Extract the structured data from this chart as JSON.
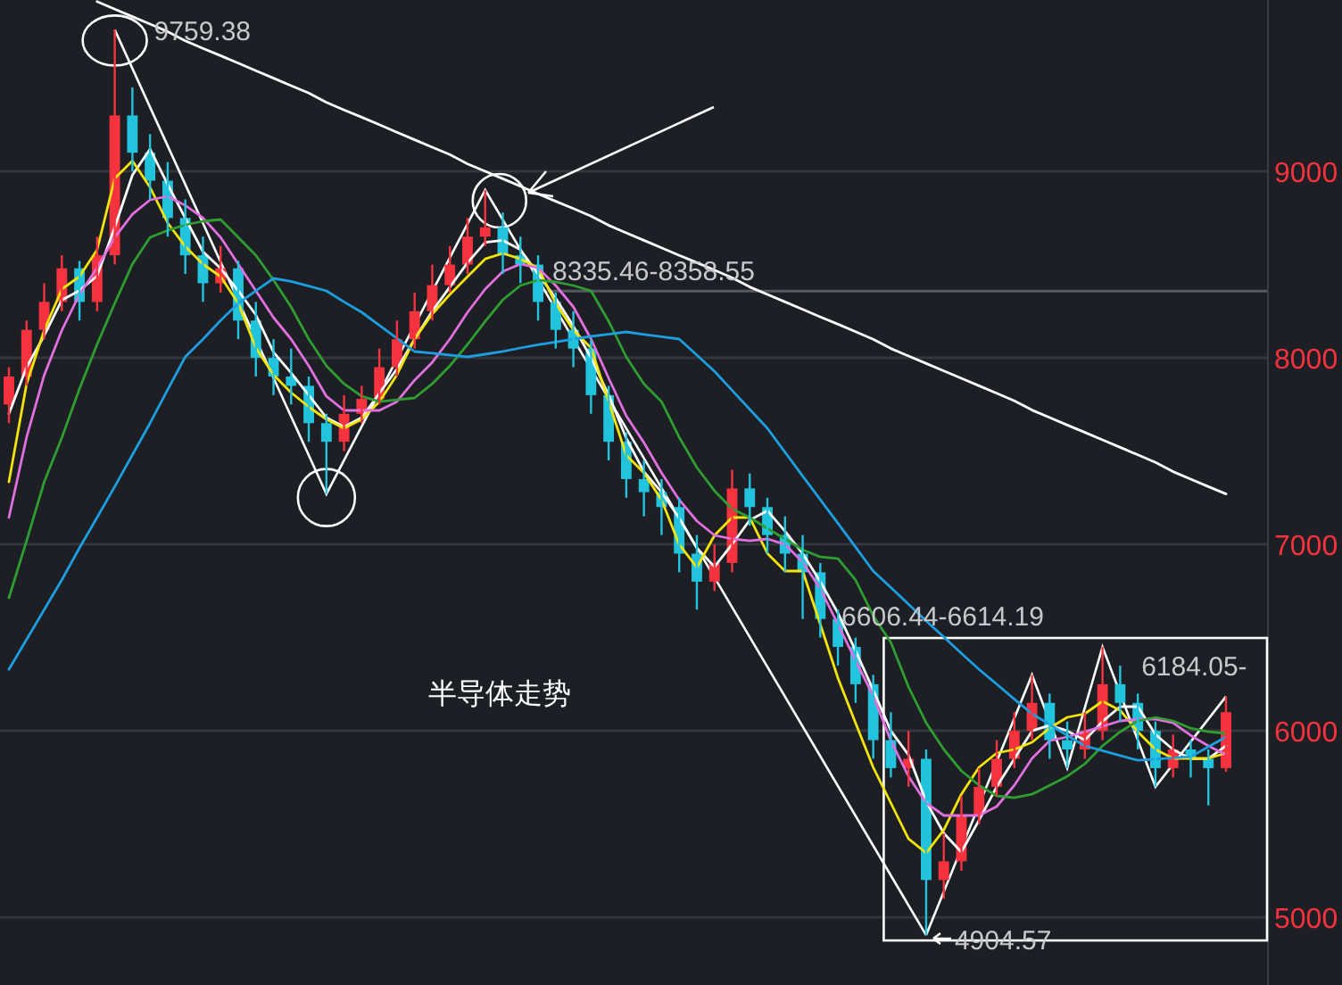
{
  "chart_data": {
    "type": "candlestick",
    "title": "半导体走势",
    "categories": [
      null,
      null,
      null,
      null,
      null,
      null,
      null,
      null,
      null,
      null,
      null,
      null,
      null,
      null,
      null,
      null,
      null,
      null,
      null,
      null,
      null,
      null,
      null,
      null,
      null,
      null,
      null,
      null,
      null,
      null,
      null,
      null,
      null,
      null,
      null,
      null,
      null,
      null,
      null,
      null,
      null,
      null,
      null,
      null,
      null,
      null,
      null,
      null,
      null,
      null,
      null,
      null,
      null,
      null,
      null,
      null,
      null,
      null,
      null,
      null,
      null,
      null,
      null,
      null,
      null,
      null,
      null,
      null,
      null,
      null
    ],
    "ohlc": [
      [
        7750,
        7950,
        7650,
        7900
      ],
      [
        7900,
        8200,
        7850,
        8150
      ],
      [
        8150,
        8400,
        8100,
        8300
      ],
      [
        8300,
        8550,
        8250,
        8480
      ],
      [
        8480,
        8520,
        8200,
        8300
      ],
      [
        8300,
        8650,
        8250,
        8550
      ],
      [
        8550,
        9759.38,
        8500,
        9300
      ],
      [
        9300,
        9450,
        9000,
        9100
      ],
      [
        9100,
        9200,
        8850,
        8950
      ],
      [
        8950,
        9050,
        8650,
        8750
      ],
      [
        8750,
        8850,
        8450,
        8550
      ],
      [
        8550,
        8650,
        8300,
        8400
      ],
      [
        8400,
        8600,
        8350,
        8480
      ],
      [
        8480,
        8520,
        8100,
        8200
      ],
      [
        8200,
        8300,
        7900,
        8000
      ],
      [
        8000,
        8100,
        7800,
        7900
      ],
      [
        7900,
        8050,
        7750,
        7850
      ],
      [
        7850,
        7900,
        7550,
        7650
      ],
      [
        7650,
        7700,
        7270,
        7550
      ],
      [
        7550,
        7800,
        7500,
        7700
      ],
      [
        7700,
        7850,
        7650,
        7780
      ],
      [
        7780,
        8050,
        7750,
        7950
      ],
      [
        7950,
        8200,
        7900,
        8100
      ],
      [
        8100,
        8350,
        8050,
        8250
      ],
      [
        8250,
        8500,
        8200,
        8390
      ],
      [
        8390,
        8600,
        8350,
        8500
      ],
      [
        8500,
        8750,
        8450,
        8650
      ],
      [
        8650,
        8900,
        8600,
        8700
      ],
      [
        8700,
        8780,
        8450,
        8550
      ],
      [
        8550,
        8650,
        8400,
        8500
      ],
      [
        8500,
        8550,
        8200,
        8300
      ],
      [
        8300,
        8350,
        8050,
        8150
      ],
      [
        8150,
        8250,
        7950,
        8050
      ],
      [
        8050,
        8100,
        7700,
        7800
      ],
      [
        7800,
        7850,
        7450,
        7550
      ],
      [
        7550,
        7600,
        7250,
        7350
      ],
      [
        7350,
        7450,
        7150,
        7280
      ],
      [
        7280,
        7350,
        7050,
        7200
      ],
      [
        7200,
        7250,
        6850,
        6950
      ],
      [
        6950,
        7050,
        6650,
        6800
      ],
      [
        6800,
        7000,
        6750,
        6900
      ],
      [
        6900,
        7400,
        6850,
        7300
      ],
      [
        7300,
        7380,
        7100,
        7200
      ],
      [
        7200,
        7250,
        6950,
        7050
      ],
      [
        7050,
        7150,
        6850,
        6950
      ],
      [
        6950,
        7050,
        6600,
        6850
      ],
      [
        6850,
        6900,
        6500,
        6600
      ],
      [
        6600,
        6650,
        6350,
        6450
      ],
      [
        6450,
        6500,
        6150,
        6250
      ],
      [
        6250,
        6300,
        5850,
        5950
      ],
      [
        5950,
        6100,
        5750,
        5800
      ],
      [
        5800,
        6000,
        5700,
        5850
      ],
      [
        5850,
        5900,
        4904.57,
        5200
      ],
      [
        5200,
        5450,
        5100,
        5300
      ],
      [
        5300,
        5650,
        5250,
        5550
      ],
      [
        5550,
        5800,
        5500,
        5700
      ],
      [
        5700,
        5950,
        5650,
        5850
      ],
      [
        5850,
        6100,
        5800,
        6000
      ],
      [
        6000,
        6300,
        5950,
        6150
      ],
      [
        6150,
        6200,
        5850,
        5950
      ],
      [
        5950,
        6050,
        5800,
        5900
      ],
      [
        5900,
        6100,
        5850,
        6000
      ],
      [
        6000,
        6450,
        5950,
        6250
      ],
      [
        6250,
        6350,
        6050,
        6150
      ],
      [
        6150,
        6200,
        5900,
        6000
      ],
      [
        6000,
        6050,
        5700,
        5800
      ],
      [
        5800,
        5980,
        5750,
        5900
      ],
      [
        5900,
        5950,
        5750,
        5850
      ],
      [
        5850,
        5900,
        5600,
        5800
      ],
      [
        5800,
        6184.05,
        5780,
        6100
      ]
    ],
    "colors": [
      "#f5333f",
      "#f5333f",
      "#f5333f",
      "#f5333f",
      "#22c3dd",
      "#f5333f",
      "#f5333f",
      "#22c3dd",
      "#22c3dd",
      "#22c3dd",
      "#22c3dd",
      "#22c3dd",
      "#f5333f",
      "#22c3dd",
      "#22c3dd",
      "#22c3dd",
      "#22c3dd",
      "#22c3dd",
      "#22c3dd",
      "#f5333f",
      "#f5333f",
      "#f5333f",
      "#f5333f",
      "#f5333f",
      "#f5333f",
      "#f5333f",
      "#f5333f",
      "#f5333f",
      "#22c3dd",
      "#22c3dd",
      "#22c3dd",
      "#22c3dd",
      "#22c3dd",
      "#22c3dd",
      "#22c3dd",
      "#22c3dd",
      "#22c3dd",
      "#22c3dd",
      "#22c3dd",
      "#22c3dd",
      "#f5333f",
      "#f5333f",
      "#22c3dd",
      "#22c3dd",
      "#22c3dd",
      "#22c3dd",
      "#22c3dd",
      "#22c3dd",
      "#22c3dd",
      "#22c3dd",
      "#22c3dd",
      "#f5333f",
      "#22c3dd",
      "#f5333f",
      "#f5333f",
      "#f5333f",
      "#f5333f",
      "#f5333f",
      "#f5333f",
      "#22c3dd",
      "#22c3dd",
      "#f5333f",
      "#f5333f",
      "#22c3dd",
      "#22c3dd",
      "#22c3dd",
      "#f5333f",
      "#22c3dd",
      "#22c3dd",
      "#f5333f"
    ],
    "series": [
      {
        "type": "line",
        "color": "#ffffff",
        "values": [
          7700,
          7950,
          8120,
          8310,
          8360,
          8440,
          8700,
          8980,
          9120,
          8930,
          8750,
          8570,
          8480,
          8360,
          8230,
          8030,
          7920,
          7800,
          7680,
          7630,
          7680,
          7810,
          7940,
          8100,
          8250,
          8380,
          8510,
          8620,
          8630,
          8580,
          8450,
          8320,
          8170,
          8000,
          7800,
          7570,
          7390,
          7280,
          7140,
          6980,
          6880,
          7000,
          7130,
          7180,
          7070,
          6950,
          6800,
          6630,
          6430,
          6220,
          6000,
          5870,
          5620,
          5450,
          5350,
          5520,
          5700,
          5850,
          6000,
          6030,
          6000,
          5950,
          6050,
          6130,
          6130,
          5980,
          5900,
          5850,
          5850,
          5920
        ]
      },
      {
        "type": "line",
        "color": "#f2e40c",
        "values": [
          7335,
          7861,
          8149,
          8369,
          8436,
          8579,
          8962,
          9057,
          8914,
          8723,
          8598,
          8503,
          8436,
          8292,
          8053,
          7909,
          7814,
          7737,
          7670,
          7622,
          7670,
          7765,
          7909,
          8101,
          8235,
          8340,
          8436,
          8531,
          8560,
          8531,
          8483,
          8292,
          8149,
          8053,
          7765,
          7479,
          7383,
          7239,
          7000,
          6876,
          7048,
          7144,
          7144,
          6952,
          6857,
          6857,
          6570,
          6282,
          6043,
          5804,
          5613,
          5421,
          5345,
          5469,
          5660,
          5804,
          5881,
          5900,
          5938,
          6015,
          6072,
          6091,
          6158,
          6110,
          5995,
          5900,
          5852,
          5852,
          5852,
          5881
        ]
      },
      {
        "type": "line",
        "color": "#e070e0",
        "values": [
          7144,
          7574,
          7909,
          8149,
          8340,
          8483,
          8646,
          8770,
          8847,
          8866,
          8818,
          8751,
          8646,
          8503,
          8359,
          8216,
          8101,
          7957,
          7794,
          7718,
          7718,
          7718,
          7765,
          7880,
          7976,
          8101,
          8244,
          8369,
          8464,
          8503,
          8483,
          8388,
          8273,
          8101,
          7890,
          7689,
          7546,
          7383,
          7239,
          7125,
          7048,
          7029,
          7019,
          7029,
          7000,
          6905,
          6761,
          6570,
          6378,
          6187,
          5947,
          5756,
          5613,
          5546,
          5546,
          5546,
          5594,
          5708,
          5852,
          5947,
          5967,
          5995,
          6024,
          6053,
          6062,
          6062,
          6043,
          5976,
          5919,
          5871
        ]
      },
      {
        "type": "line",
        "color": "#2e9e32",
        "values": [
          6713,
          7019,
          7335,
          7574,
          7833,
          8072,
          8292,
          8503,
          8646,
          8684,
          8713,
          8732,
          8742,
          8646,
          8550,
          8417,
          8273,
          8101,
          7957,
          7861,
          7794,
          7765,
          7775,
          7785,
          7861,
          7957,
          8072,
          8196,
          8311,
          8388,
          8417,
          8407,
          8388,
          8359,
          8196,
          8005,
          7861,
          7765,
          7574,
          7412,
          7287,
          7191,
          7144,
          7086,
          7029,
          6971,
          6933,
          6923,
          6809,
          6617,
          6474,
          6235,
          6043,
          5900,
          5785,
          5708,
          5651,
          5641,
          5660,
          5708,
          5756,
          5823,
          5919,
          5995,
          6053,
          6072,
          6053,
          6014,
          5995,
          5986
        ]
      },
      {
        "type": "line",
        "color": "#ffffff",
        "values": [
          null,
          null,
          null,
          null,
          null,
          9910,
          9870,
          9830,
          9790,
          9750,
          9700,
          9660,
          9620,
          9580,
          9540,
          9500,
          9460,
          9420,
          9370,
          9330,
          9290,
          9250,
          9210,
          9170,
          9130,
          9090,
          9040,
          9000,
          8960,
          8920,
          8880,
          8840,
          8800,
          8760,
          8710,
          8670,
          8630,
          8590,
          8550,
          8510,
          8470,
          8430,
          8380,
          8340,
          8300,
          8260,
          8220,
          8180,
          8140,
          8100,
          8050,
          8010,
          7970,
          7930,
          7890,
          7850,
          7810,
          7770,
          7720,
          7680,
          7640,
          7600,
          7560,
          7520,
          7480,
          7440,
          7390,
          7350,
          7310,
          7270
        ]
      },
      {
        "type": "line",
        "color": "#1c9ee0",
        "values": [
          6330,
          6490,
          6650,
          6810,
          6980,
          7144,
          7310,
          7480,
          7650,
          7830,
          8005,
          8100,
          8200,
          8292,
          8360,
          8426,
          8410,
          8385,
          8359,
          8300,
          8244,
          8175,
          8105,
          8034,
          8025,
          8015,
          8005,
          8020,
          8035,
          8053,
          8070,
          8085,
          8101,
          8115,
          8127,
          8139,
          8126,
          8113,
          8101,
          8015,
          7928,
          7826,
          7724,
          7622,
          7494,
          7366,
          7239,
          7112,
          6985,
          6857,
          6768,
          6679,
          6589,
          6503,
          6416,
          6330,
          6250,
          6170,
          6091,
          6034,
          5976,
          5919,
          5893,
          5868,
          5842,
          5848,
          5855,
          5861,
          5914,
          5967
        ]
      }
    ],
    "ylim": [
      4637,
      9919
    ],
    "yticks": [
      5000,
      6000,
      7000,
      8000,
      9000
    ],
    "grid": "y",
    "ref_lines": [
      {
        "axis": "y",
        "value": 8358.55,
        "color": "#55585e"
      }
    ],
    "annotations": [
      "9759.38",
      "8335.46-8358.55",
      "6606.44-6614.19",
      "6184.05-",
      "4904.57"
    ]
  }
}
